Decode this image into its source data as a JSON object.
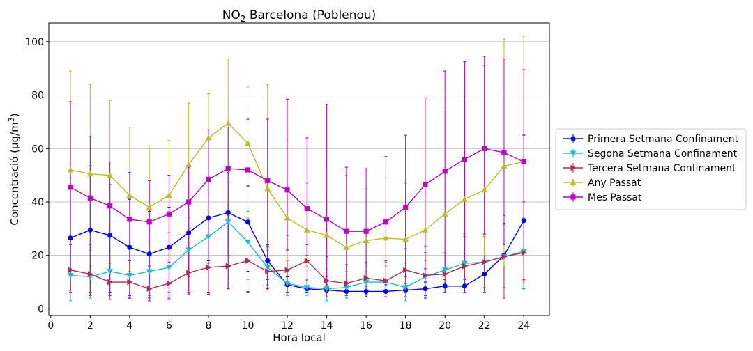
{
  "chart_data": {
    "type": "line",
    "title": {
      "main": "NO",
      "sub": "2",
      "rest": " Barcelona (Poblenou)"
    },
    "xlabel": "Hora local",
    "ylabel": {
      "pre": "Concentració (µg/m",
      "sup": "3",
      "post": ")"
    },
    "xlim": [
      -0.1,
      25.3
    ],
    "ylim": [
      -2.5,
      107
    ],
    "xticks": [
      0,
      2,
      4,
      6,
      8,
      10,
      12,
      14,
      16,
      18,
      20,
      22,
      24
    ],
    "yticks": [
      0,
      20,
      40,
      60,
      80,
      100
    ],
    "grid": "horizontal",
    "legend_position": "right",
    "x": [
      1,
      2,
      3,
      4,
      5,
      6,
      7,
      8,
      9,
      10,
      11,
      12,
      13,
      14,
      15,
      16,
      17,
      18,
      19,
      20,
      21,
      22,
      23,
      24
    ],
    "series": [
      {
        "name": "Primera Setmana Confinament",
        "color": "#0000ff",
        "marker": "circle",
        "values": [
          26.5,
          29.5,
          27.5,
          23,
          20.5,
          23,
          28.5,
          34,
          36,
          32.5,
          18,
          9,
          7.5,
          7,
          6.5,
          6.5,
          6.5,
          7,
          7.5,
          8.5,
          8.5,
          13,
          20,
          33
        ],
        "err_low": [
          7,
          6,
          6,
          5,
          5,
          6,
          12,
          18,
          20,
          14,
          11,
          6,
          6,
          6,
          5,
          4.5,
          4.5,
          4.5,
          5,
          6,
          6,
          7,
          8,
          7.5
        ],
        "err_high": [
          49,
          53.5,
          46.5,
          41,
          36.5,
          38,
          40.5,
          48.5,
          51,
          46,
          24,
          12,
          10.5,
          9,
          8.5,
          8.5,
          9,
          9.5,
          10,
          11,
          11,
          19,
          32,
          65
        ]
      },
      {
        "name": "Segona Setmana Confinament",
        "color": "#17becf",
        "marker": "triangle-down",
        "values": [
          12.5,
          12,
          14,
          12.5,
          14,
          15.5,
          22,
          27,
          32.5,
          25,
          15.5,
          9.5,
          8,
          7.5,
          8,
          10,
          10,
          8,
          12,
          14.5,
          17,
          17.5,
          19.5,
          21.5
        ],
        "err_low": [
          3,
          4,
          5,
          4,
          5,
          6,
          13,
          17,
          20,
          11,
          9,
          5,
          5,
          3,
          4,
          5,
          4.5,
          3,
          4,
          6,
          8,
          8,
          8,
          7.5
        ],
        "err_high": [
          24,
          22,
          27,
          25,
          25,
          28.5,
          34,
          43,
          47.5,
          36.5,
          22,
          14,
          11,
          12,
          14,
          17,
          17.5,
          13,
          23.5,
          25,
          28,
          27,
          31.5,
          34
        ]
      },
      {
        "name": "Tercera Setmana Confinament",
        "color": "#b22d52",
        "marker": "triangle-right",
        "values": [
          14.5,
          13,
          10,
          10,
          7.5,
          9.5,
          13.5,
          15.5,
          16,
          18,
          14,
          14.5,
          18,
          10.5,
          9.5,
          11.5,
          10.5,
          14.5,
          12.5,
          13,
          16,
          17.5,
          19.5,
          21
        ],
        "err_low": [
          6,
          5,
          3.5,
          4,
          3,
          3.5,
          5.5,
          5.5,
          7.5,
          6,
          7,
          6,
          8,
          4.5,
          5,
          5.5,
          4.5,
          6,
          4,
          6,
          6,
          6,
          4,
          10.5
        ],
        "err_high": [
          24,
          24,
          19,
          18,
          16,
          17.5,
          23,
          34,
          35,
          34,
          23.5,
          27.5,
          24,
          19.5,
          16.5,
          17.5,
          18,
          22.5,
          21,
          21,
          27,
          28,
          35,
          40
        ]
      },
      {
        "name": "Any Passat",
        "color": "#bcbd22",
        "marker": "triangle-up",
        "values": [
          52,
          50.5,
          50,
          42.5,
          38,
          42.5,
          54,
          64,
          69.5,
          62,
          45,
          34,
          29.5,
          27.5,
          23,
          25.5,
          26.5,
          26,
          29.5,
          35.5,
          41,
          44.5,
          53.5,
          55
        ],
        "err_low": [
          15,
          16,
          17,
          14,
          14,
          20,
          30,
          37,
          39,
          34,
          23,
          18,
          16,
          15,
          14,
          14,
          16,
          17,
          18,
          21,
          21,
          20,
          16,
          10
        ],
        "err_high": [
          89,
          84,
          78,
          68,
          61,
          63,
          77,
          80.5,
          93.5,
          83,
          84,
          63.5,
          47,
          55,
          50,
          45,
          49,
          47,
          43,
          74,
          79,
          91,
          101,
          102
        ]
      },
      {
        "name": "Mes Passat",
        "color": "#bf00bf",
        "marker": "square",
        "values": [
          45.5,
          41.5,
          38.5,
          33.5,
          32.5,
          35.5,
          40,
          48.5,
          52.5,
          52,
          48,
          44.5,
          37.5,
          33.5,
          29,
          29,
          32.5,
          38,
          46.5,
          51.5,
          56,
          60,
          58.5,
          55
        ],
        "err_low": [
          7,
          5,
          5,
          4,
          4,
          4,
          6,
          6,
          7.5,
          6.5,
          7.5,
          22,
          20,
          9,
          10,
          10,
          10,
          12,
          15,
          14,
          16,
          28,
          24,
          11
        ],
        "err_high": [
          77.5,
          64.5,
          55,
          51,
          48,
          50,
          53,
          67,
          68,
          71,
          71,
          78.5,
          64,
          76.5,
          53,
          52.5,
          57,
          65,
          79,
          89,
          92.5,
          94.5,
          93.5,
          89.5
        ]
      }
    ]
  }
}
